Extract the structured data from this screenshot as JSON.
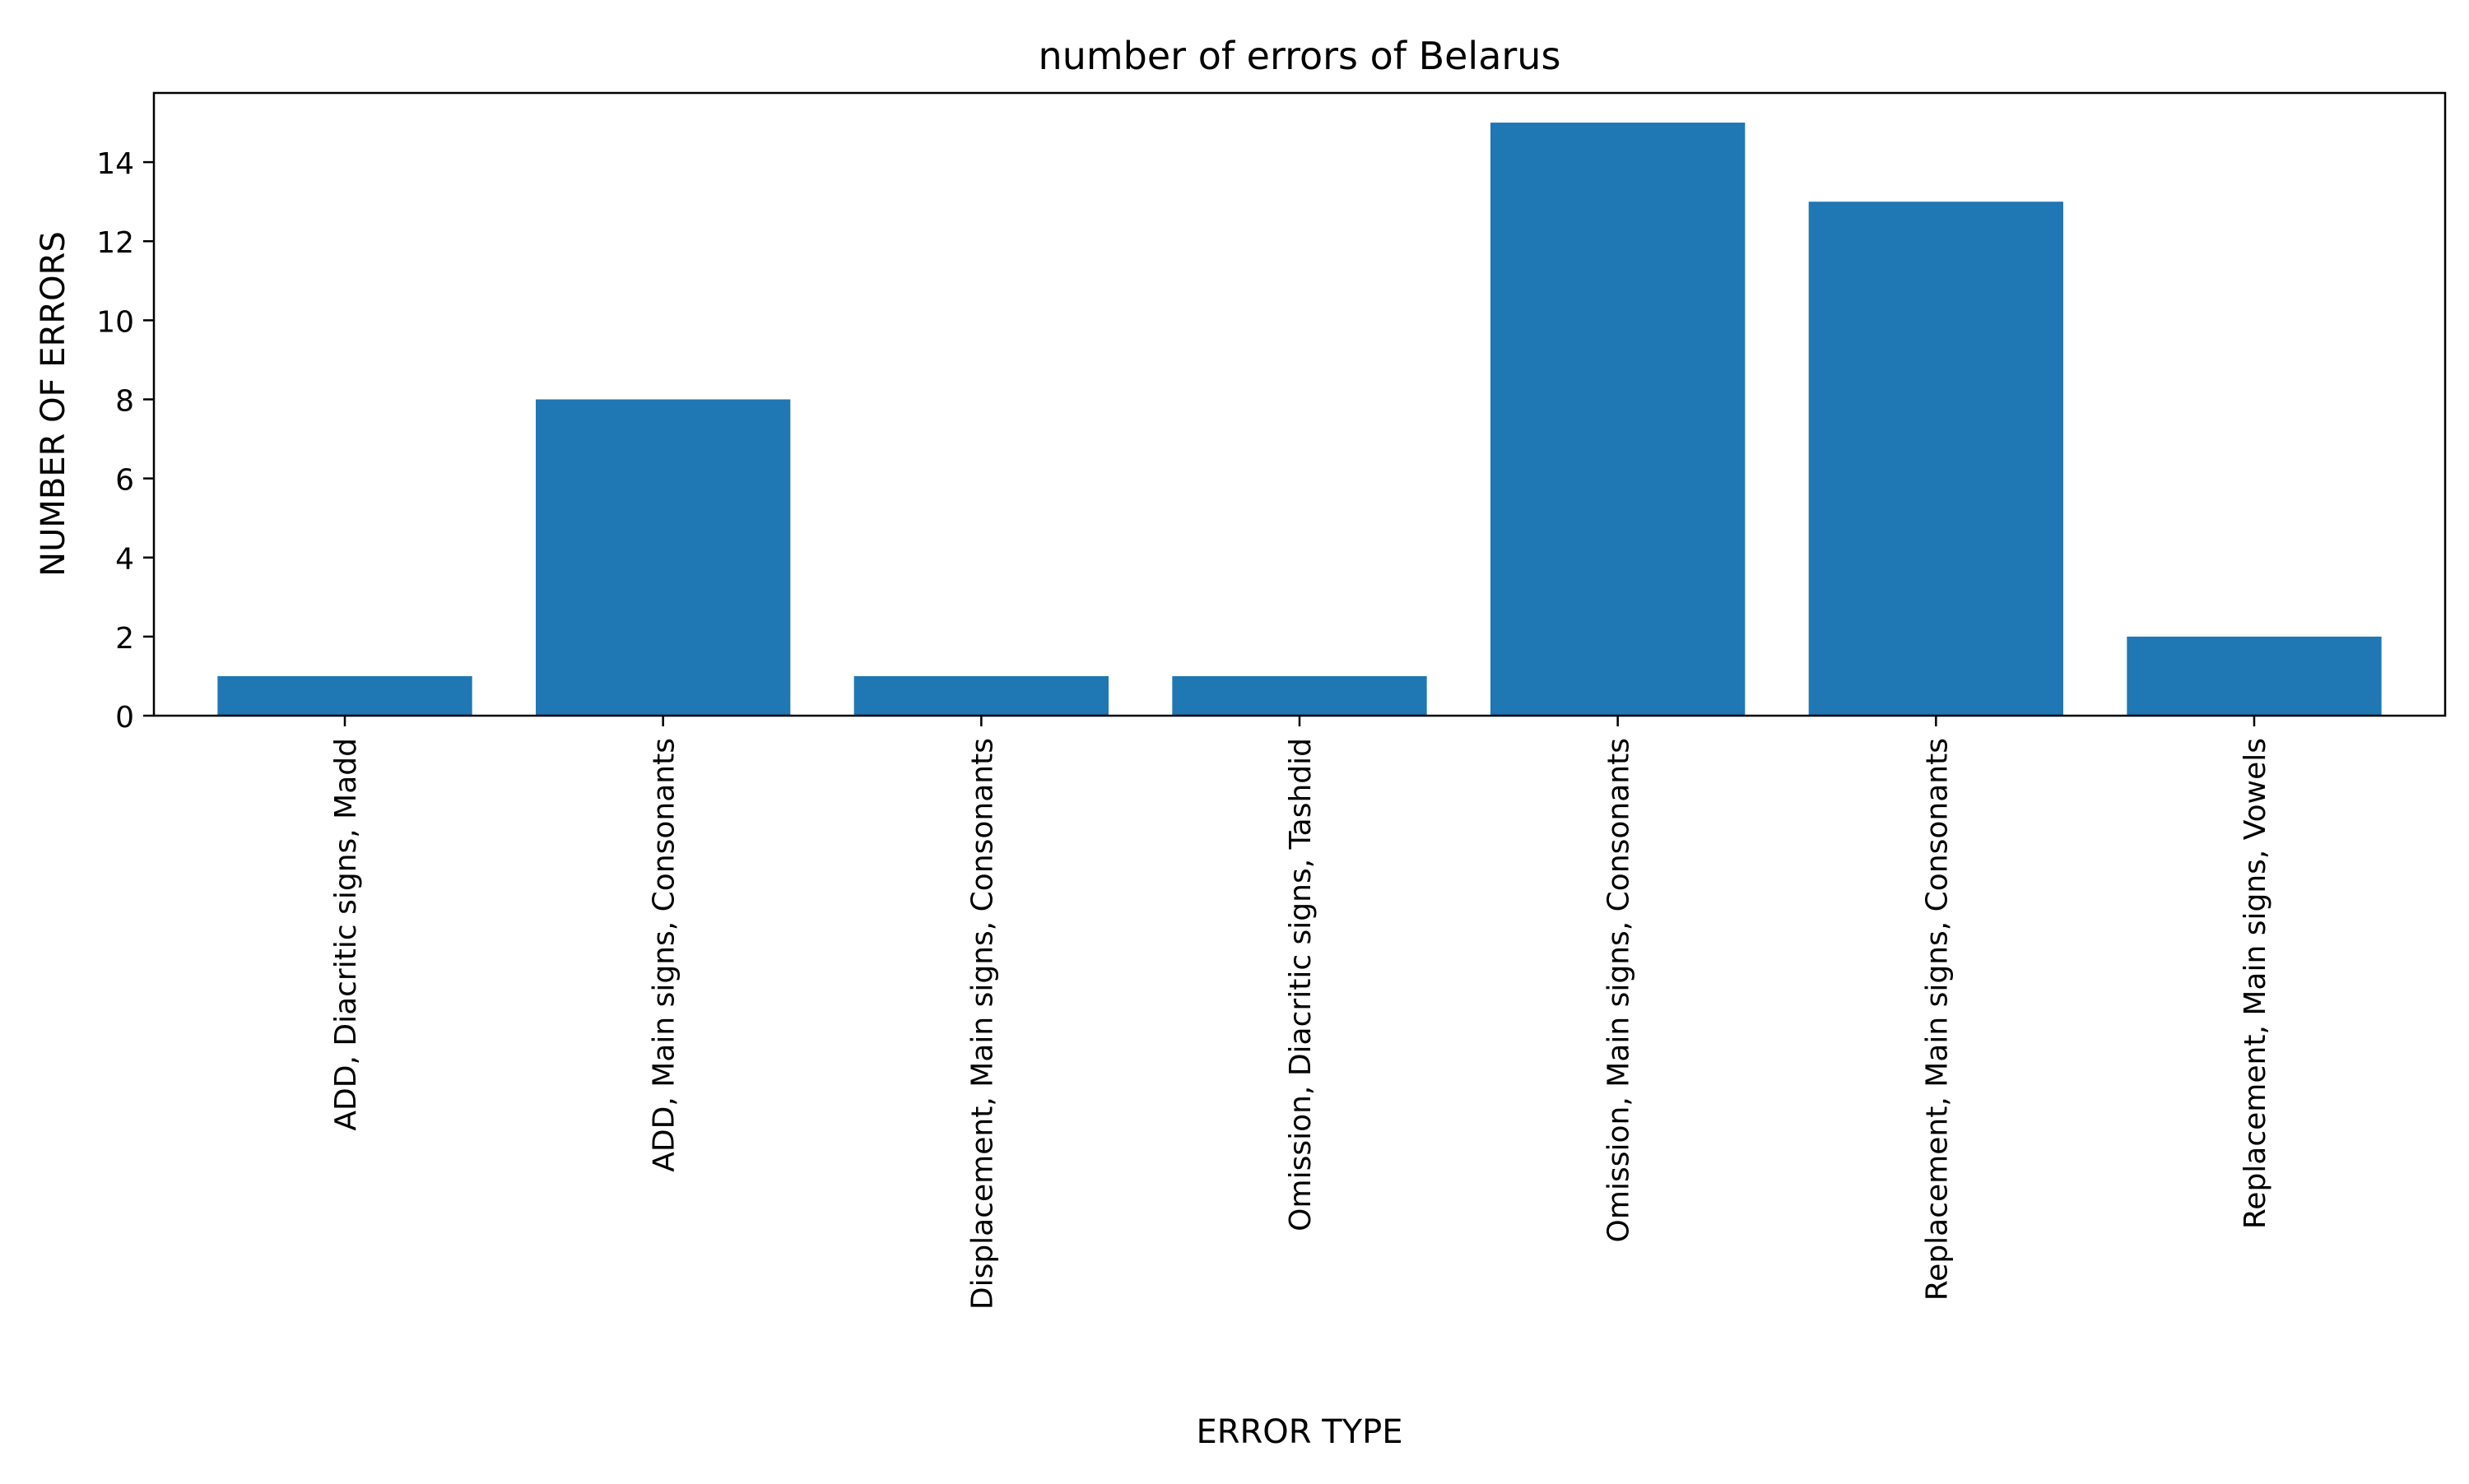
{
  "chart_data": {
    "type": "bar",
    "title": "number of errors of Belarus",
    "xlabel": "ERROR TYPE",
    "ylabel": "NUMBER OF ERRORS",
    "categories": [
      "ADD, Diacritic signs, Madd",
      "ADD, Main signs, Consonants",
      "Displacement, Main signs, Consonants",
      "Omission, Diacritic signs, Tashdid",
      "Omission, Main signs, Consonants",
      "Replacement, Main signs, Consonants",
      "Replacement, Main signs, Vowels"
    ],
    "values": [
      1,
      8,
      1,
      1,
      15,
      13,
      2
    ],
    "ylim": [
      0,
      15.75
    ],
    "yticks": [
      0,
      2,
      4,
      6,
      8,
      10,
      12,
      14
    ],
    "x_tick_rotation": "vertical",
    "grid": false,
    "legend": "none",
    "bar_color": "#1f77b4"
  }
}
